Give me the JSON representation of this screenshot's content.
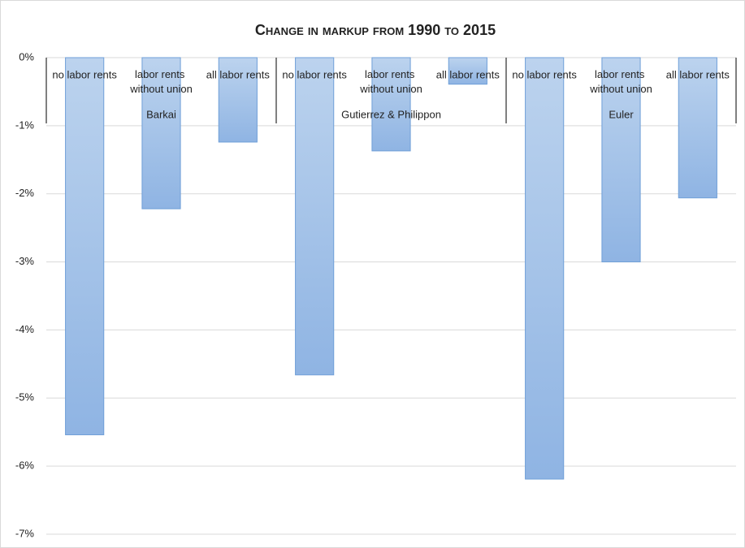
{
  "chart_data": {
    "type": "bar",
    "title": "Change in markup from 1990 to 2015",
    "categories": [
      "no labor rents",
      "labor rents without union",
      "all labor rents",
      "no labor rents",
      "labor rents without union",
      "all labor rents",
      "no labor rents",
      "labor rents without union",
      "all labor rents"
    ],
    "groups": [
      "Barkai",
      "Gutierrez & Philippon",
      "Euler"
    ],
    "values": [
      -5.54,
      -2.22,
      -1.24,
      -4.66,
      -1.37,
      -0.39,
      -6.19,
      -3.0,
      -2.06
    ],
    "color": "#9dbfe6",
    "ylim": [
      -7,
      0
    ],
    "yticks": [
      {
        "value": 0,
        "label": "0%"
      },
      {
        "value": -1,
        "label": "-1%"
      },
      {
        "value": -2,
        "label": "-2%"
      },
      {
        "value": -3,
        "label": "-3%"
      },
      {
        "value": -4,
        "label": "-4%"
      },
      {
        "value": -5,
        "label": "-5%"
      },
      {
        "value": -6,
        "label": "-6%"
      },
      {
        "value": -7,
        "label": "-7%"
      }
    ],
    "grid": true
  }
}
